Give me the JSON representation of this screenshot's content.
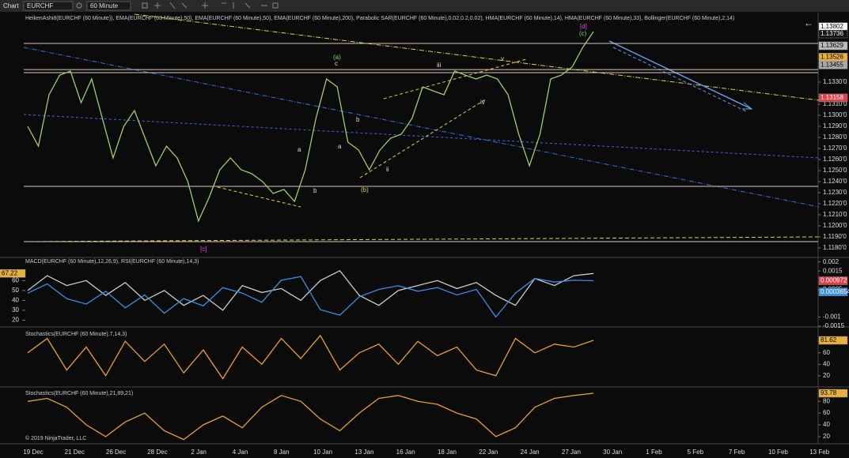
{
  "toolbar": {
    "tab": "Chart",
    "instrument": "EURCHF",
    "interval": "60 Minute"
  },
  "copyright": "© 2019 NinjaTrader, LLC",
  "time_axis": [
    "19 Dec",
    "21 Dec",
    "26 Dec",
    "28 Dec",
    "2 Jan",
    "4 Jan",
    "8 Jan",
    "10 Jan",
    "13 Jan",
    "16 Jan",
    "18 Jan",
    "22 Jan",
    "24 Jan",
    "27 Jan",
    "30 Jan",
    "1 Feb",
    "5 Feb",
    "7 Feb",
    "10 Feb",
    "13 Feb"
  ],
  "annotations": [
    {
      "text": "[d]",
      "color": "#e040e0"
    },
    {
      "text": "(c)",
      "color": "#7ed957"
    },
    {
      "text": "(a)",
      "color": "#7ed957"
    },
    {
      "text": "c",
      "color": "#dddddd"
    },
    {
      "text": "a",
      "color": "#dddddd"
    },
    {
      "text": "a",
      "color": "#dddddd"
    },
    {
      "text": "b",
      "color": "#dddddd"
    },
    {
      "text": "(b)",
      "color": "#e0d040"
    },
    {
      "text": "iii",
      "color": "#dddddd"
    },
    {
      "text": "v",
      "color": "#dddddd"
    },
    {
      "text": "iv",
      "color": "#dddddd"
    },
    {
      "text": "ii",
      "color": "#dddddd"
    },
    {
      "text": "b",
      "color": "#dddddd"
    },
    {
      "text": "[c]",
      "color": "#e040e0"
    }
  ],
  "chart_data": [
    {
      "type": "line",
      "title": "HeikenAshi8(EURCHF (60 Minute)), EMA(EURCHF (60 Minute),50), EMA(EURCHF (60 Minute),50), EMA(EURCHF (60 Minute),200), Parabolic SAR(EURCHF (60 Minute),0.02,0.2,0.02), HMA(EURCHF (60 Minute),14), HMA(EURCHF (60 Minute),33), Bollinger(EURCHF (60 Minute),2,14)",
      "ylim": [
        1.11721,
        1.13929
      ],
      "yticks": [
        {
          "value": 1.133,
          "label": "1.1330'0"
        },
        {
          "value": 1.131,
          "label": "1.1310'0"
        },
        {
          "value": 1.13,
          "label": "1.1300'0"
        },
        {
          "value": 1.129,
          "label": "1.1290'0"
        },
        {
          "value": 1.128,
          "label": "1.1280'0"
        },
        {
          "value": 1.127,
          "label": "1.1270'0"
        },
        {
          "value": 1.126,
          "label": "1.1260'0"
        },
        {
          "value": 1.125,
          "label": "1.1250'0"
        },
        {
          "value": 1.124,
          "label": "1.1240'0"
        },
        {
          "value": 1.123,
          "label": "1.1230'0"
        },
        {
          "value": 1.122,
          "label": "1.1220'0"
        },
        {
          "value": 1.121,
          "label": "1.1210'0"
        },
        {
          "value": 1.12,
          "label": "1.1200'0"
        },
        {
          "value": 1.119,
          "label": "1.1190'0"
        },
        {
          "value": 1.118,
          "label": "1.1180'0"
        }
      ],
      "levels": [
        1.1365,
        1.13414,
        1.13386,
        1.12357,
        1.11857
      ],
      "tags": [
        {
          "value": 1.13802,
          "color": "#ffffff"
        },
        {
          "value": 1.13736,
          "color": "#111111"
        },
        {
          "value": 1.13629,
          "color": "#bbbbbb"
        },
        {
          "value": 1.13526,
          "color": "#e8b040"
        },
        {
          "value": 1.13455,
          "color": "#aaaaaa"
        },
        {
          "value": 1.13158,
          "color": "#e0404a"
        }
      ],
      "series": [
        {
          "name": "EURCHF",
          "color": "#9ccf6a",
          "values": [
            1.129,
            1.12721,
            1.13186,
            1.13364,
            1.134,
            1.13114,
            1.13329,
            1.12971,
            1.12614,
            1.129,
            1.13043,
            1.12793,
            1.12543,
            1.12721,
            1.12614,
            1.124,
            1.12043,
            1.12257,
            1.12507,
            1.12614,
            1.12507,
            1.12471,
            1.124,
            1.12293,
            1.12329,
            1.12221,
            1.12507,
            1.12971,
            1.13329,
            1.13257,
            1.12757,
            1.12686,
            1.12507,
            1.12686,
            1.12793,
            1.12829,
            1.12971,
            1.13257,
            1.13221,
            1.13186,
            1.134,
            1.13364,
            1.13329,
            1.13364,
            1.13329,
            1.13186,
            1.12829,
            1.12543,
            1.12829,
            1.13329,
            1.13364,
            1.13436,
            1.13614,
            1.13757
          ]
        }
      ]
    },
    {
      "type": "line",
      "title": "MACD(EURCHF (60 Minute),12,26,9), RSI(EURCHF (60 Minute),14,3)",
      "ylim": [
        14,
        82.6
      ],
      "yticks": [
        20,
        30,
        40,
        50,
        60
      ],
      "yaxis_side": "left",
      "y2lim": [
        -0.0015,
        0.0022
      ],
      "y2ticks": [
        0.002,
        0.0015,
        0.0005,
        -0.001,
        -0.0015
      ],
      "tags": [
        {
          "value": 67.22,
          "color": "#e8b040"
        },
        {
          "value": 0.000972,
          "color": "#e0404a",
          "axis": "y2"
        },
        {
          "value": 0.0003654,
          "color": "#3a8ee6",
          "axis": "y2"
        }
      ],
      "series": [
        {
          "name": "RSI",
          "color": "#cccccc",
          "values": [
            50,
            65,
            55,
            60,
            45,
            58,
            40,
            50,
            35,
            45,
            30,
            55,
            48,
            52,
            40,
            60,
            70,
            45,
            35,
            50,
            55,
            60,
            52,
            58,
            45,
            35,
            62,
            55,
            65,
            67.22
          ]
        },
        {
          "name": "MACD",
          "color": "#3a8ee6",
          "axis": "y2",
          "values": [
            0.0003,
            0.0008,
            0.0,
            -0.0003,
            0.0004,
            -0.0005,
            0.0002,
            -0.0008,
            0.0,
            -0.0004,
            0.0006,
            0.0003,
            -0.0002,
            0.001,
            0.0012,
            -0.0006,
            -0.0009,
            0.0001,
            0.0005,
            0.0007,
            0.0004,
            0.0006,
            0.0002,
            0.0005,
            -0.001,
            0.0003,
            0.0011,
            0.0009,
            0.001,
            0.000972
          ]
        }
      ]
    },
    {
      "type": "line",
      "title": "Stochastics(EURCHF (60 Minute),7,14,3)",
      "ylim": [
        1.9,
        102.3
      ],
      "yticks": [
        20,
        40,
        60,
        80
      ],
      "tags": [
        {
          "value": 81.62,
          "color": "#e8b040"
        }
      ],
      "series": [
        {
          "name": "K",
          "color": "#e8a030",
          "values": [
            60,
            85,
            30,
            70,
            20,
            80,
            45,
            75,
            25,
            65,
            15,
            70,
            40,
            85,
            50,
            90,
            30,
            60,
            75,
            40,
            80,
            55,
            70,
            30,
            20,
            85,
            60,
            75,
            70,
            81.62
          ]
        }
      ]
    },
    {
      "type": "line",
      "title": "Stochastics(EURCHF (60 Minute),21,89,21)",
      "ylim": [
        9.1,
        103.2
      ],
      "yticks": [
        20,
        40,
        60,
        80
      ],
      "tags": [
        {
          "value": 93.78,
          "color": "#e8b040"
        }
      ],
      "series": [
        {
          "name": "K",
          "color": "#e8a030",
          "values": [
            80,
            85,
            70,
            40,
            20,
            45,
            60,
            30,
            15,
            40,
            55,
            35,
            70,
            90,
            80,
            50,
            30,
            60,
            85,
            90,
            80,
            75,
            60,
            50,
            20,
            35,
            70,
            85,
            90,
            93.78
          ]
        }
      ]
    }
  ]
}
